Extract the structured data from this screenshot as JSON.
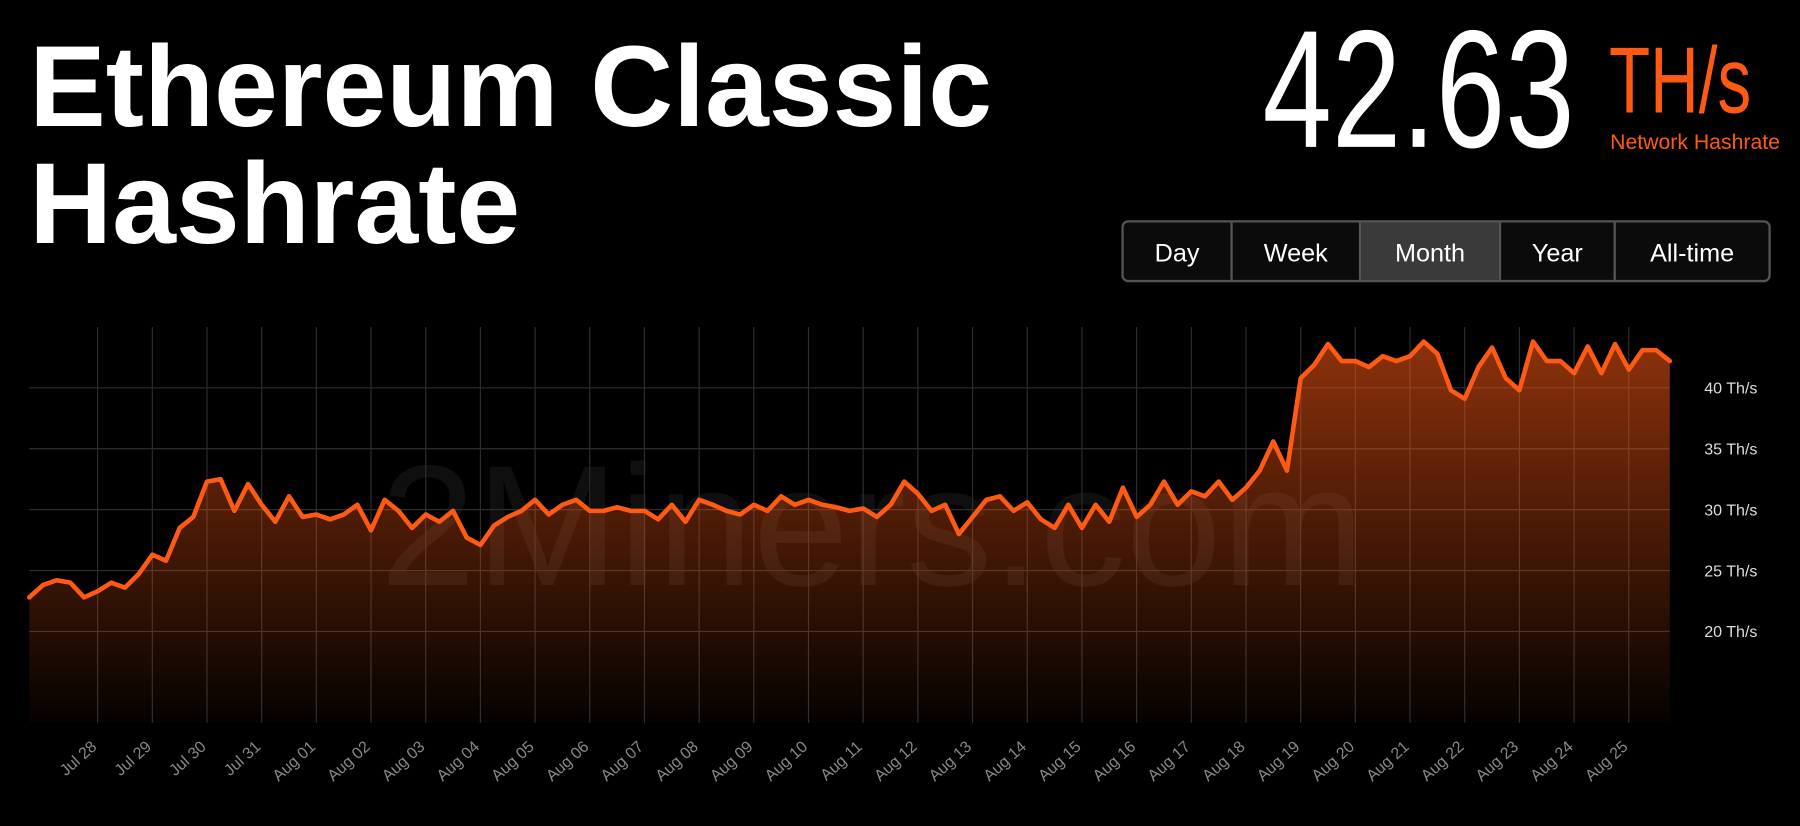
{
  "header": {
    "title_lines": [
      "Ethereum Classic",
      "Hashrate"
    ],
    "current_value": "42.63",
    "unit": "TH/s",
    "caption": "Network Hashrate"
  },
  "tabs": {
    "items": [
      "Day",
      "Week",
      "Month",
      "Year",
      "All-time"
    ],
    "selected": 2
  },
  "watermark": "2Miners.com",
  "chart_data": {
    "type": "area",
    "color": "#ff5a14",
    "grid": true,
    "yaxis_position": "right",
    "categories": [
      null,
      null,
      null,
      null,
      null,
      "Jul 28",
      null,
      null,
      null,
      "Jul 29",
      null,
      null,
      null,
      "Jul 30",
      null,
      null,
      null,
      "Jul 31",
      null,
      null,
      null,
      "Aug 01",
      null,
      null,
      null,
      "Aug 02",
      null,
      null,
      null,
      "Aug 03",
      null,
      null,
      null,
      "Aug 04",
      null,
      null,
      null,
      "Aug 05",
      null,
      null,
      null,
      "Aug 06",
      null,
      null,
      null,
      "Aug 07",
      null,
      null,
      null,
      "Aug 08",
      null,
      null,
      null,
      "Aug 09",
      null,
      null,
      null,
      "Aug 10",
      null,
      null,
      null,
      "Aug 11",
      null,
      null,
      null,
      "Aug 12",
      null,
      null,
      null,
      "Aug 13",
      null,
      null,
      null,
      "Aug 14",
      null,
      null,
      null,
      "Aug 15",
      null,
      null,
      null,
      "Aug 16",
      null,
      null,
      null,
      "Aug 17",
      null,
      null,
      null,
      "Aug 18",
      null,
      null,
      null,
      "Aug 19",
      null,
      null,
      null,
      "Aug 20",
      null,
      null,
      null,
      "Aug 21",
      null,
      null,
      null,
      "Aug 22",
      null,
      null,
      null,
      "Aug 23",
      null,
      null,
      null,
      "Aug 24",
      null,
      null,
      null,
      "Aug 25",
      null,
      null,
      null
    ],
    "values": [
      22.8,
      23.8,
      24.2,
      24.0,
      22.8,
      23.3,
      24.0,
      23.6,
      24.7,
      26.3,
      25.8,
      28.5,
      29.4,
      32.3,
      32.5,
      29.9,
      32.1,
      30.4,
      29.0,
      31.1,
      29.4,
      29.6,
      29.2,
      29.6,
      30.4,
      28.3,
      30.8,
      29.9,
      28.5,
      29.6,
      29.0,
      29.9,
      27.7,
      27.1,
      28.7,
      29.4,
      29.9,
      30.8,
      29.6,
      30.4,
      30.8,
      29.9,
      29.9,
      30.2,
      29.9,
      29.9,
      29.2,
      30.4,
      29.0,
      30.8,
      30.4,
      29.9,
      29.6,
      30.4,
      29.9,
      31.1,
      30.4,
      30.8,
      30.4,
      30.2,
      29.9,
      30.1,
      29.4,
      30.4,
      32.3,
      31.3,
      29.9,
      30.4,
      28.0,
      29.4,
      30.8,
      31.1,
      29.9,
      30.6,
      29.2,
      28.5,
      30.4,
      28.5,
      30.4,
      29.0,
      31.8,
      29.4,
      30.4,
      32.3,
      30.4,
      31.5,
      31.1,
      32.3,
      30.8,
      31.8,
      33.2,
      35.6,
      33.2,
      40.8,
      41.9,
      43.6,
      42.2,
      42.2,
      41.7,
      42.6,
      42.2,
      42.6,
      43.8,
      42.8,
      39.8,
      39.1,
      41.7,
      43.3,
      40.8,
      39.8,
      43.8,
      42.2,
      42.2,
      41.2,
      43.4,
      41.2,
      43.6,
      41.5,
      43.1,
      43.1,
      42.2
    ],
    "ylim": [
      12.5,
      45
    ],
    "yticks": [
      {
        "value": 20,
        "label": "20 Th/s"
      },
      {
        "value": 25,
        "label": "25 Th/s"
      },
      {
        "value": 30,
        "label": "30 Th/s"
      },
      {
        "value": 35,
        "label": "35 Th/s"
      },
      {
        "value": 40,
        "label": "40 Th/s"
      }
    ]
  }
}
